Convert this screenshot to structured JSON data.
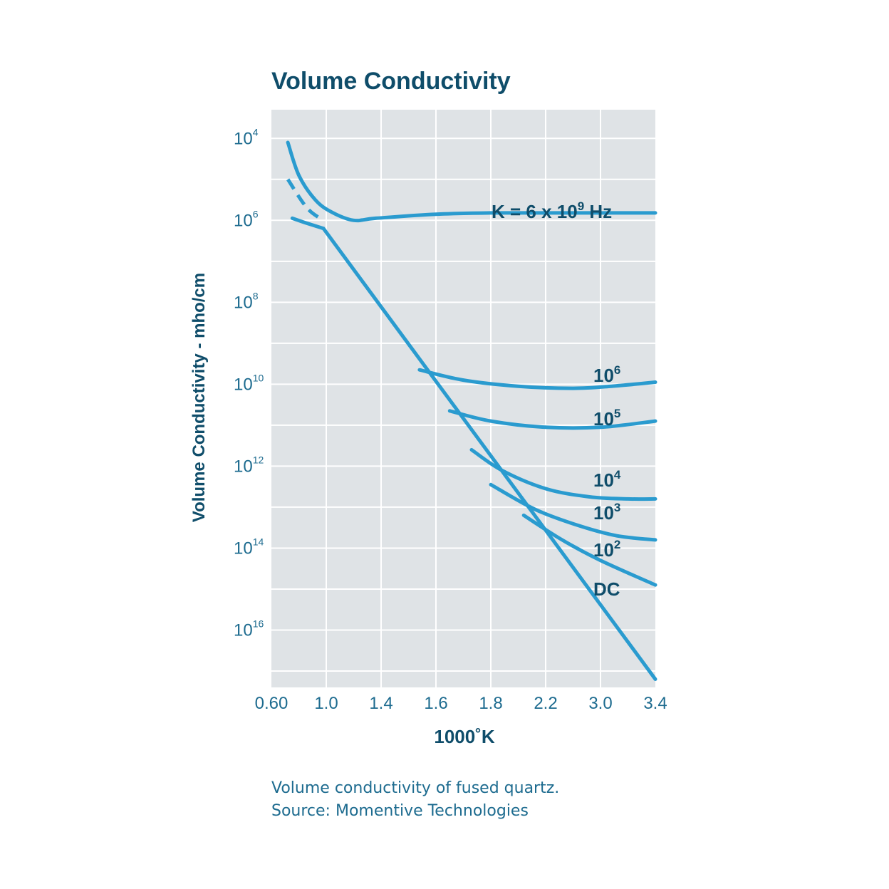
{
  "chart_data": {
    "type": "line",
    "title": "Volume Conductivity",
    "xlabel": "1000˚K",
    "ylabel": "Volume Conductivity - mho/cm",
    "x_ticks": [
      "0.60",
      "1.0",
      "1.4",
      "1.6",
      "1.8",
      "2.2",
      "3.0",
      "3.4"
    ],
    "y_ticks": [
      {
        "base": "10",
        "exp": "4",
        "value": 4
      },
      {
        "base": "10",
        "exp": "6",
        "value": 6
      },
      {
        "base": "10",
        "exp": "8",
        "value": 8
      },
      {
        "base": "10",
        "exp": "10",
        "value": 10
      },
      {
        "base": "10",
        "exp": "12",
        "value": 12
      },
      {
        "base": "10",
        "exp": "14",
        "value": 14
      },
      {
        "base": "10",
        "exp": "16",
        "value": 16
      }
    ],
    "x_index_range": [
      0,
      7
    ],
    "y_exponent_range": [
      3.3,
      17.4
    ],
    "grid": true,
    "series": [
      {
        "name": "K = 6 x 10⁹ Hz",
        "label_base": "K = 6 x 10",
        "label_sup": "9",
        "label_suffix": " Hz",
        "points": [
          [
            0.3,
            4.1
          ],
          [
            0.5,
            4.9
          ],
          [
            0.8,
            5.5
          ],
          [
            1.1,
            5.8
          ],
          [
            1.5,
            6.0
          ],
          [
            1.9,
            5.95
          ],
          [
            3,
            5.85
          ],
          [
            4,
            5.82
          ],
          [
            5,
            5.82
          ],
          [
            6,
            5.82
          ],
          [
            7,
            5.82
          ]
        ]
      },
      {
        "name": "10⁶",
        "label_base": "10",
        "label_sup": "6",
        "points": [
          [
            2.7,
            9.65
          ],
          [
            3.5,
            9.9
          ],
          [
            4.5,
            10.05
          ],
          [
            5.5,
            10.1
          ],
          [
            6.2,
            10.05
          ],
          [
            7,
            9.95
          ]
        ]
      },
      {
        "name": "10⁵",
        "label_base": "10",
        "label_sup": "5",
        "points": [
          [
            3.25,
            10.65
          ],
          [
            4,
            10.9
          ],
          [
            5,
            11.05
          ],
          [
            6,
            11.05
          ],
          [
            7,
            10.9
          ]
        ]
      },
      {
        "name": "10⁴",
        "label_base": "10",
        "label_sup": "4",
        "points": [
          [
            3.65,
            11.6
          ],
          [
            4.2,
            12.1
          ],
          [
            5,
            12.55
          ],
          [
            5.8,
            12.75
          ],
          [
            6.5,
            12.8
          ],
          [
            7,
            12.8
          ]
        ]
      },
      {
        "name": "10³",
        "label_base": "10",
        "label_sup": "3",
        "points": [
          [
            4.0,
            12.45
          ],
          [
            4.8,
            13.05
          ],
          [
            5.6,
            13.45
          ],
          [
            6.3,
            13.7
          ],
          [
            7,
            13.8
          ]
        ]
      },
      {
        "name": "10²",
        "label_base": "10",
        "label_sup": "2",
        "points": [
          [
            4.6,
            13.2
          ],
          [
            5.3,
            13.8
          ],
          [
            6,
            14.3
          ],
          [
            7,
            14.9
          ]
        ]
      },
      {
        "name": "DC",
        "label_base": "DC",
        "label_sup": "",
        "points": [
          [
            0.38,
            5.95
          ],
          [
            0.6,
            6.05
          ],
          [
            0.95,
            6.2
          ],
          [
            7,
            17.2
          ]
        ]
      }
    ],
    "dashed_segments": [
      {
        "points": [
          [
            0.3,
            5.0
          ],
          [
            0.65,
            5.7
          ],
          [
            0.95,
            6.0
          ]
        ]
      }
    ],
    "colors": {
      "line": "#2a9bcf",
      "text_dark": "#0f4d6a",
      "text_axis": "#1d6b8f",
      "grid_bg": "#dfe3e6",
      "grid_line": "#ffffff"
    }
  },
  "caption": {
    "line1": "Volume conductivity of fused quartz.",
    "line2": "Source: Momentive Technologies"
  }
}
